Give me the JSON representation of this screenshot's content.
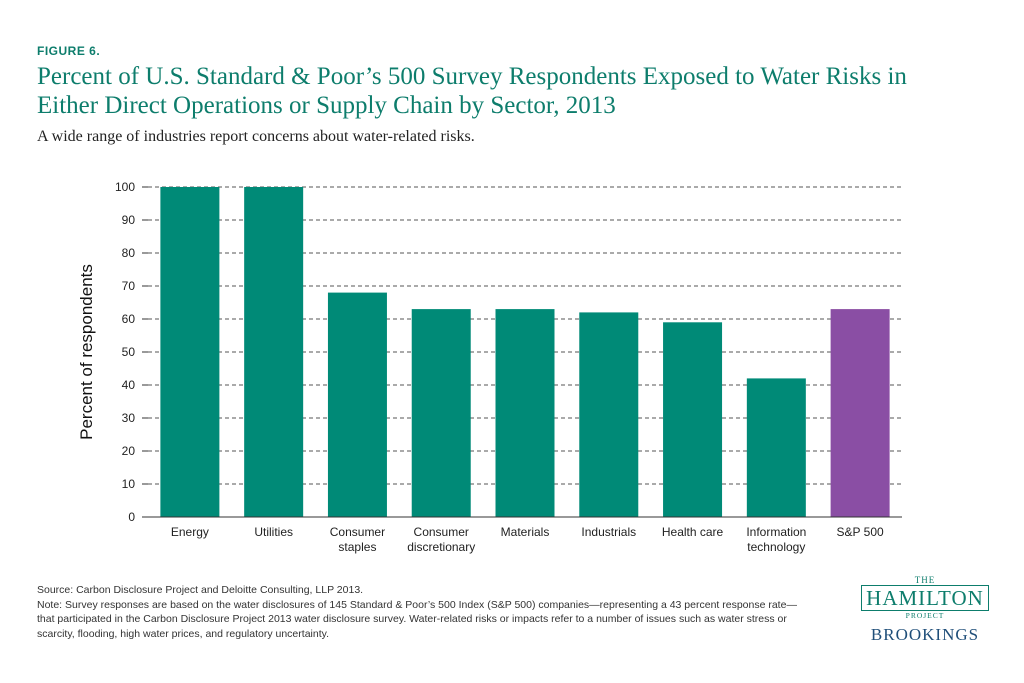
{
  "figure_label": "FIGURE 6.",
  "title_line1": "Percent of U.S. Standard & Poor’s 500 Survey Respondents Exposed to Water Risks in",
  "title_line2": "Either Direct Operations or Supply Chain by Sector, 2013",
  "subtitle": "A wide range of industries report concerns about water-related risks.",
  "chart_data": {
    "type": "bar",
    "ylabel": "Percent of respondents",
    "xlabel": "",
    "ylim": [
      0,
      100
    ],
    "yticks": [
      0,
      10,
      20,
      30,
      40,
      50,
      60,
      70,
      80,
      90,
      100
    ],
    "grid": "horizontal dashed",
    "categories": [
      [
        "Energy"
      ],
      [
        "Utilities"
      ],
      [
        "Consumer",
        "staples"
      ],
      [
        "Consumer",
        "discretionary"
      ],
      [
        "Materials"
      ],
      [
        "Industrials"
      ],
      [
        "Health care"
      ],
      [
        "Information",
        "technology"
      ],
      [
        "S&P 500"
      ]
    ],
    "values": [
      100,
      100,
      68,
      63,
      63,
      62,
      59,
      42,
      63
    ],
    "colors": [
      "#008a77",
      "#008a77",
      "#008a77",
      "#008a77",
      "#008a77",
      "#008a77",
      "#008a77",
      "#008a77",
      "#8a4ea4"
    ]
  },
  "footer": {
    "source": "Source: Carbon Disclosure Project and Deloitte Consulting, LLP 2013.",
    "note": "Note: Survey responses are based on the water disclosures of 145 Standard & Poor’s 500 Index (S&P 500) companies—representing a 43 percent response rate—that participated in the Carbon Disclosure Project 2013 water disclosure survey. Water-related risks or impacts refer to a number of issues such as water stress or scarcity, flooding, high water prices, and regulatory uncertainty."
  },
  "logo": {
    "the": "THE",
    "hamilton": "HAMILTON",
    "project": "PROJECT",
    "brookings": "BROOKINGS"
  }
}
